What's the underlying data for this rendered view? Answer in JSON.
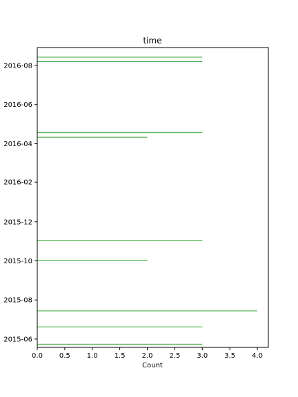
{
  "chart_data": {
    "type": "bar",
    "orientation": "horizontal",
    "title": "time",
    "xlabel": "Count",
    "ylabel": "",
    "xlim": [
      0,
      4.2
    ],
    "ylim": [
      "2015-05-19",
      "2016-08-29"
    ],
    "x_ticks": [
      0.0,
      0.5,
      1.0,
      1.5,
      2.0,
      2.5,
      3.0,
      3.5,
      4.0
    ],
    "x_tick_labels": [
      "0.0",
      "0.5",
      "1.0",
      "1.5",
      "2.0",
      "2.5",
      "3.0",
      "3.5",
      "4.0"
    ],
    "y_ticks": [
      "2015-06-01",
      "2015-08-01",
      "2015-10-01",
      "2015-12-01",
      "2016-02-01",
      "2016-04-01",
      "2016-06-01",
      "2016-08-01"
    ],
    "y_tick_labels": [
      "2015-06",
      "2015-08",
      "2015-10",
      "2015-12",
      "2016-02",
      "2016-04",
      "2016-06",
      "2016-08"
    ],
    "grid": false,
    "bar_color": "#2ca02c",
    "bars": [
      {
        "date": "2015-05-24",
        "count": 3
      },
      {
        "date": "2015-06-20",
        "count": 3
      },
      {
        "date": "2015-07-15",
        "count": 4
      },
      {
        "date": "2015-10-02",
        "count": 2
      },
      {
        "date": "2015-11-02",
        "count": 3
      },
      {
        "date": "2016-04-11",
        "count": 2
      },
      {
        "date": "2016-04-18",
        "count": 3
      },
      {
        "date": "2016-08-07",
        "count": 3
      },
      {
        "date": "2016-08-14",
        "count": 3
      }
    ]
  }
}
